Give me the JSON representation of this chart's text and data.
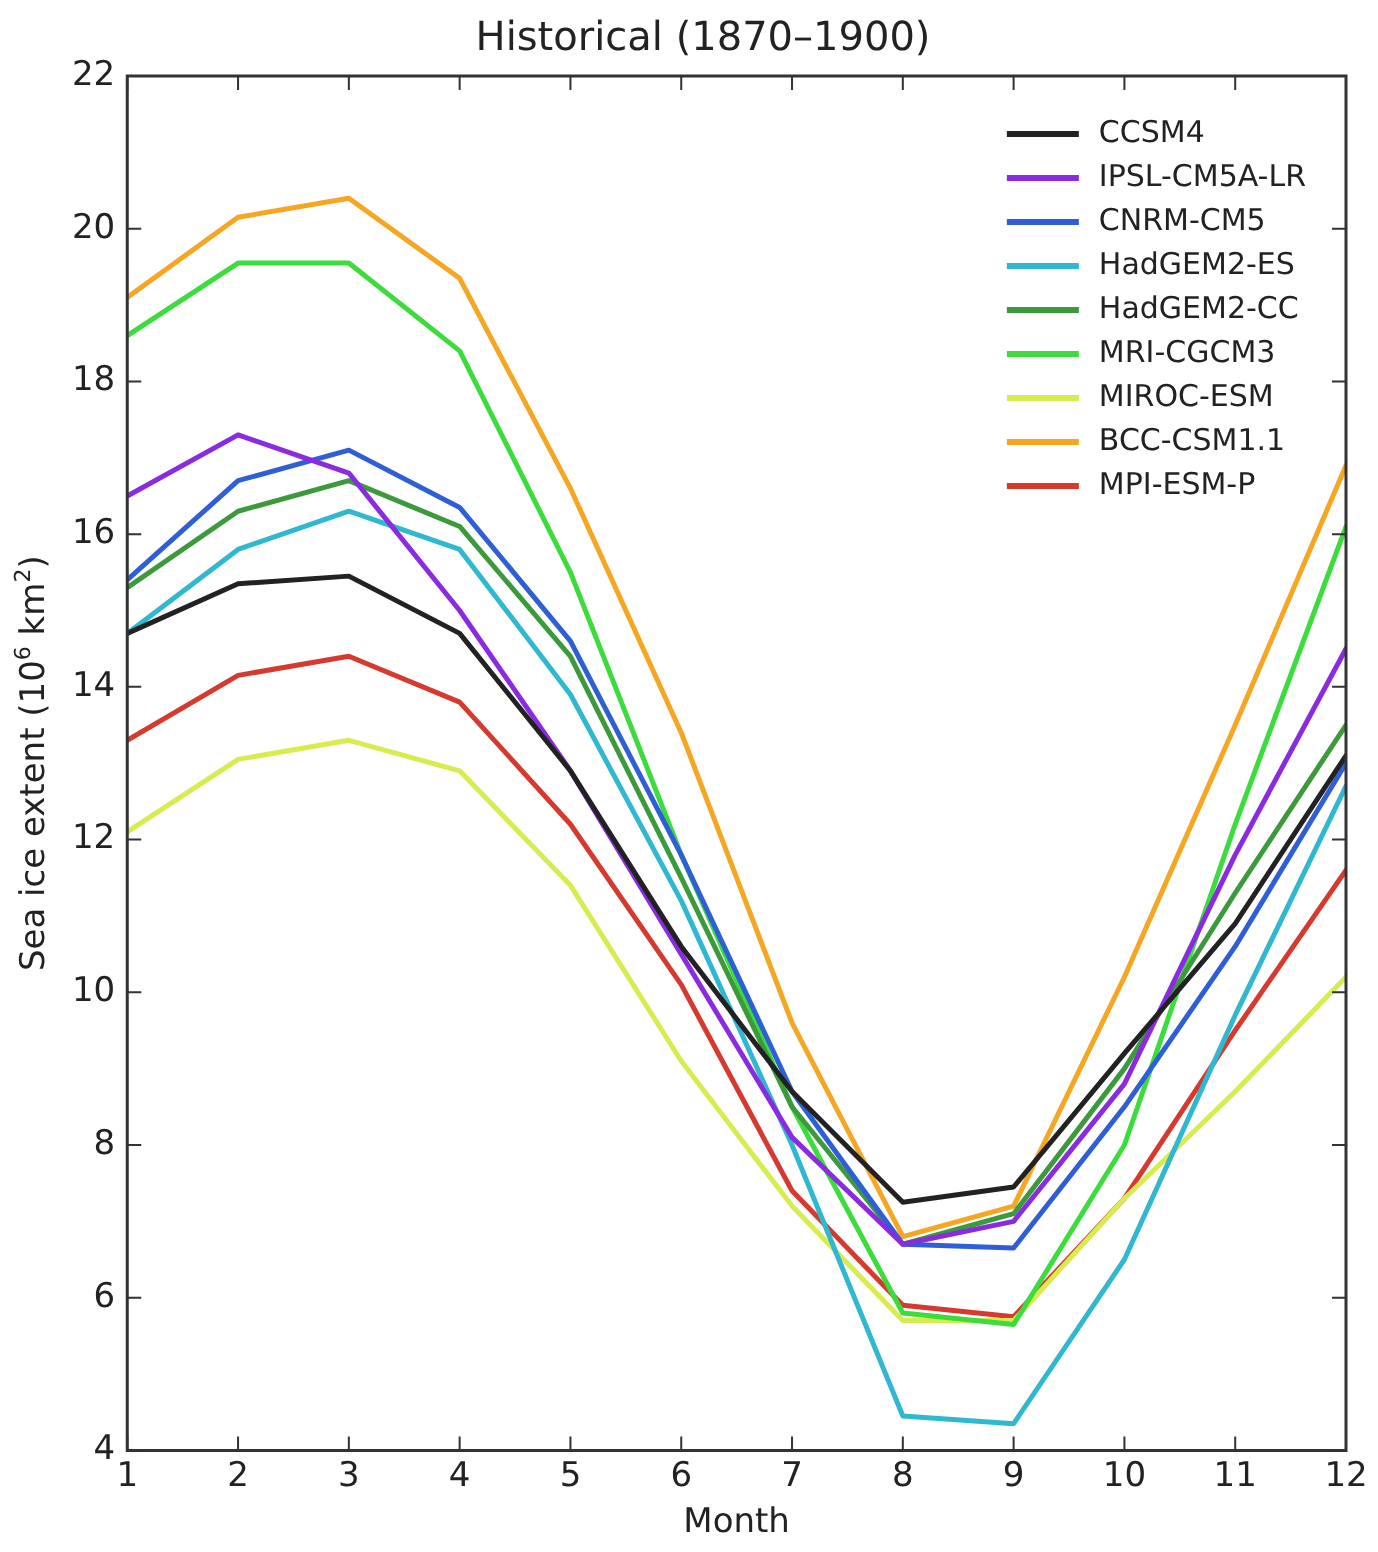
{
  "chart_data": {
    "type": "line",
    "title": "Historical (1870–1900)",
    "xlabel": "Month",
    "ylabel": "Sea ice extent (10$^{6}$ km$^{2}$)",
    "x": [
      1,
      2,
      3,
      4,
      5,
      6,
      7,
      8,
      9,
      10,
      11,
      12
    ],
    "xlim": [
      1,
      12
    ],
    "xticks": [
      1,
      2,
      3,
      4,
      5,
      6,
      7,
      8,
      9,
      10,
      11,
      12
    ],
    "ylim": [
      4,
      22
    ],
    "yticks": [
      4,
      6,
      8,
      10,
      12,
      14,
      16,
      18,
      20,
      22
    ],
    "grid": false,
    "legend": "top right",
    "marker": "none",
    "line_style": "solid",
    "series": [
      {
        "name": "CCSM4",
        "color": "#222222",
        "values": [
          14.7,
          15.35,
          15.45,
          14.7,
          12.9,
          10.6,
          8.7,
          7.25,
          7.45,
          9.2,
          10.9,
          13.1
        ]
      },
      {
        "name": "IPSL-CM5A-LR",
        "color": "#8a2be2",
        "values": [
          16.5,
          17.3,
          16.8,
          15.0,
          12.9,
          10.5,
          8.1,
          6.7,
          7.0,
          8.8,
          11.8,
          14.5
        ]
      },
      {
        "name": "CNRM-CM5",
        "color": "#2f5fd6",
        "values": [
          15.4,
          16.7,
          17.1,
          16.35,
          14.6,
          11.8,
          8.7,
          6.7,
          6.65,
          8.5,
          10.6,
          13.0
        ]
      },
      {
        "name": "HadGEM2-ES",
        "color": "#2fb8d0",
        "values": [
          14.7,
          15.8,
          16.3,
          15.8,
          13.9,
          11.2,
          8.0,
          4.45,
          4.35,
          6.5,
          9.7,
          12.7
        ]
      },
      {
        "name": "HadGEM2-CC",
        "color": "#3c9a3c",
        "values": [
          15.3,
          16.3,
          16.7,
          16.1,
          14.4,
          11.5,
          8.5,
          6.7,
          7.1,
          9.0,
          11.3,
          13.5
        ]
      },
      {
        "name": "MRI-CGCM3",
        "color": "#3ddc3d",
        "values": [
          18.6,
          19.55,
          19.55,
          18.4,
          15.5,
          11.8,
          8.5,
          5.8,
          5.65,
          8.0,
          12.2,
          16.1
        ]
      },
      {
        "name": "MIROC-ESM",
        "color": "#d8ec50",
        "values": [
          12.1,
          13.05,
          13.3,
          12.9,
          11.4,
          9.1,
          7.2,
          5.7,
          5.7,
          7.3,
          8.7,
          10.2
        ]
      },
      {
        "name": "BCC-CSM1.1",
        "color": "#f5a623",
        "values": [
          19.1,
          20.15,
          20.4,
          19.35,
          16.6,
          13.4,
          9.6,
          6.8,
          7.2,
          10.2,
          13.5,
          16.9
        ]
      },
      {
        "name": "MPI-ESM-P",
        "color": "#d63a2f",
        "values": [
          13.3,
          14.15,
          14.4,
          13.8,
          12.2,
          10.1,
          7.4,
          5.9,
          5.75,
          7.3,
          9.5,
          11.6
        ]
      }
    ]
  }
}
